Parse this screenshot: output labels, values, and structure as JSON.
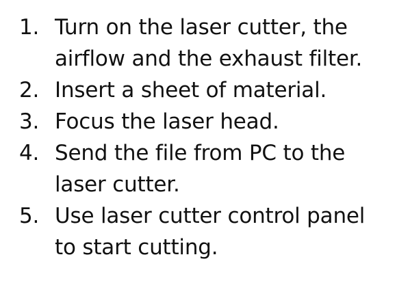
{
  "steps": [
    {
      "number": "1.",
      "text": "Turn on the laser cutter, the\nairflow and the exhaust filter."
    },
    {
      "number": "2.",
      "text": "Insert a sheet of material."
    },
    {
      "number": "3.",
      "text": "Focus the laser head."
    },
    {
      "number": "4.",
      "text": "Send the file from PC to the\nlaser cutter."
    },
    {
      "number": "5.",
      "text": "Use laser cutter control panel\nto start cutting."
    }
  ]
}
